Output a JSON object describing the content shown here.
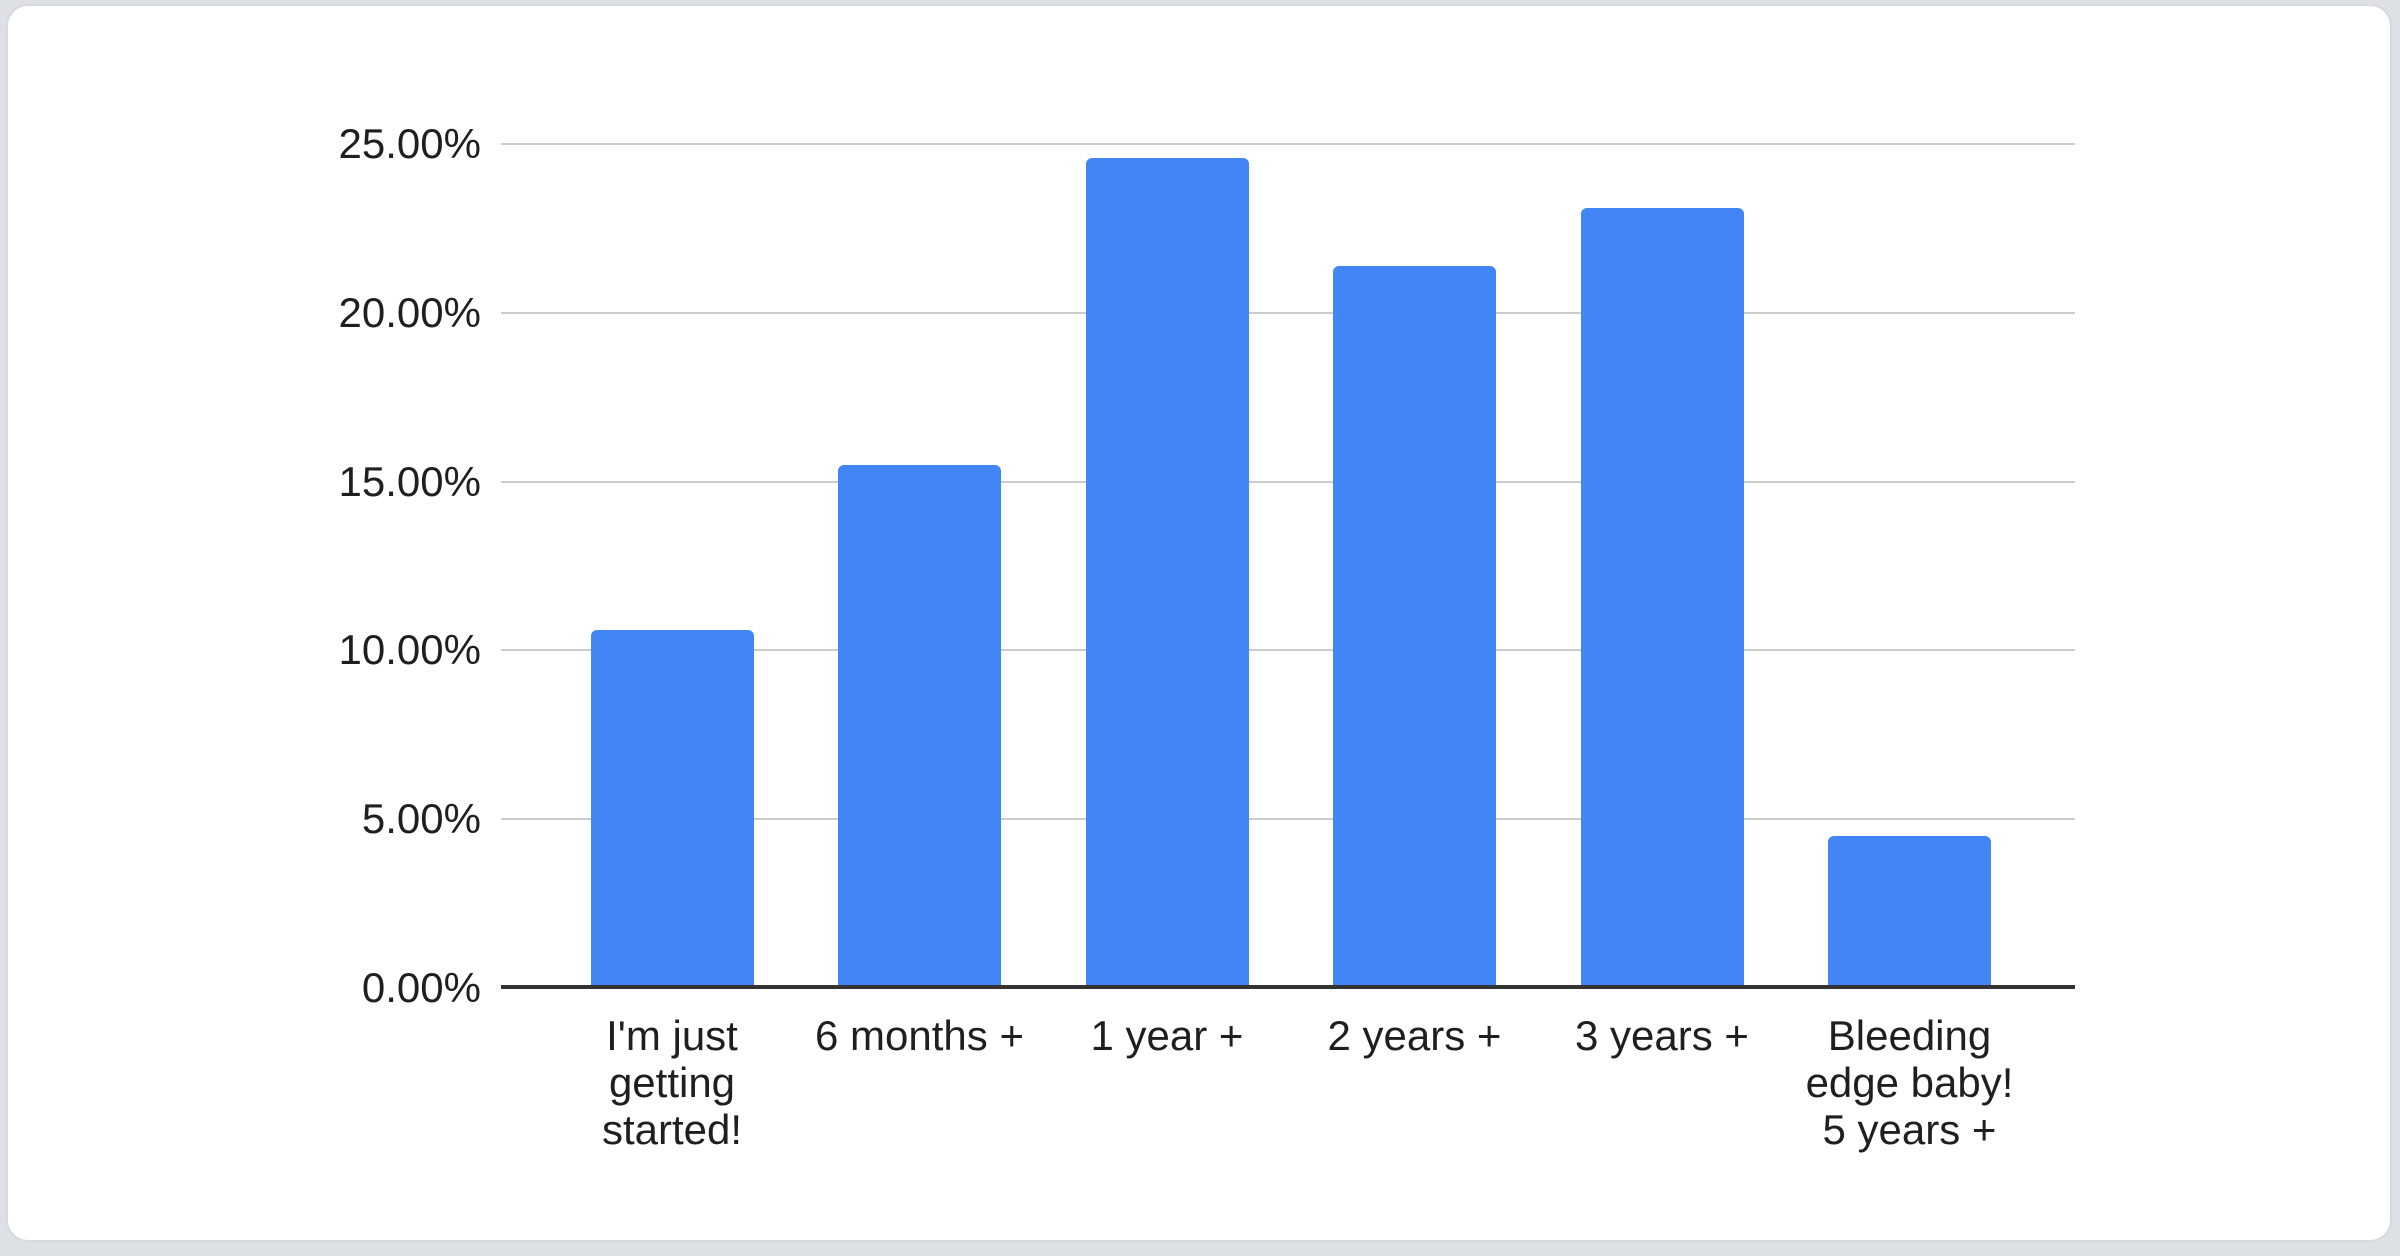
{
  "chart_data": {
    "type": "bar",
    "orientation": "vertical",
    "title": "",
    "legend": "none",
    "grid": true,
    "categories": [
      "I'm just getting started!",
      "6 months +",
      "1 year +",
      "2 years +",
      "3 years +",
      "Bleeding edge baby! 5 years +"
    ],
    "category_label_lines": [
      [
        "I'm just",
        "getting",
        "started!"
      ],
      [
        "6 months +"
      ],
      [
        "1 year +"
      ],
      [
        "2 years +"
      ],
      [
        "3 years +"
      ],
      [
        "Bleeding",
        "edge baby!",
        "5 years +"
      ]
    ],
    "values": [
      10.6,
      15.5,
      24.6,
      21.4,
      23.1,
      4.5
    ],
    "value_unit": "%",
    "ylim": [
      0,
      25
    ],
    "y_ticks": [
      {
        "value": 0,
        "label": "0.00%"
      },
      {
        "value": 5,
        "label": "5.00%"
      },
      {
        "value": 10,
        "label": "10.00%"
      },
      {
        "value": 15,
        "label": "15.00%"
      },
      {
        "value": 20,
        "label": "20.00%"
      },
      {
        "value": 25,
        "label": "25.00%"
      }
    ],
    "xlabel": "",
    "ylabel": "",
    "colors": {
      "bar": "#4285f4",
      "gridline": "#cccccc",
      "axis": "#333333",
      "text": "#1f1f1f",
      "card_background": "#ffffff",
      "page_background": "#dde1e6"
    }
  }
}
